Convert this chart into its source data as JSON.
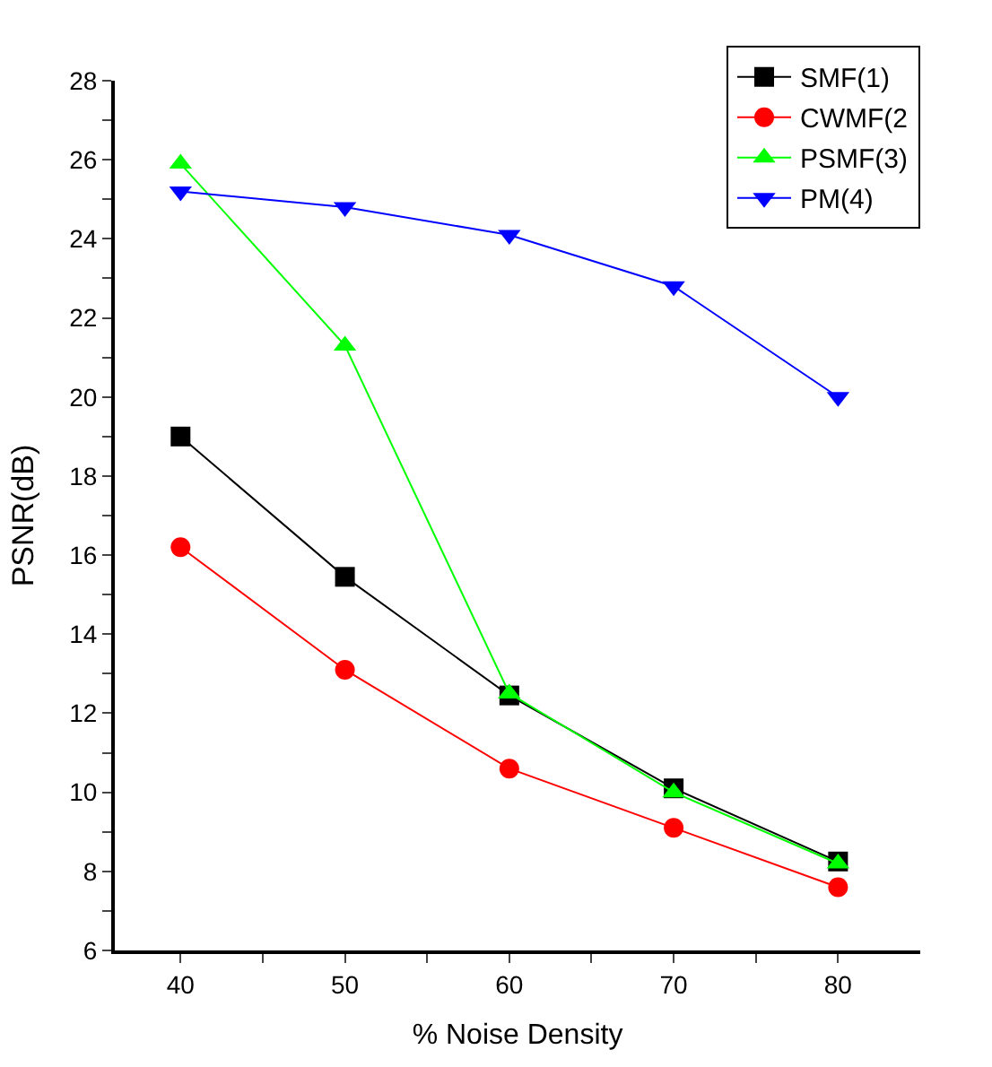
{
  "chart_data": {
    "type": "line",
    "xlabel": "% Noise Density",
    "ylabel": "PSNR(dB)",
    "x": [
      40,
      50,
      60,
      70,
      80
    ],
    "xlim": [
      36,
      85
    ],
    "xticks": [
      40,
      {
        "value": 45,
        "label": null
      },
      50,
      {
        "value": 55,
        "label": null
      },
      60,
      {
        "value": 65,
        "label": null
      },
      70,
      {
        "value": 75,
        "label": null
      },
      80
    ],
    "ylim": [
      6,
      28
    ],
    "yticks": [
      6,
      {
        "value": 7,
        "label": null
      },
      8,
      {
        "value": 9,
        "label": null
      },
      10,
      {
        "value": 11,
        "label": null
      },
      12,
      {
        "value": 13,
        "label": null
      },
      14,
      {
        "value": 15,
        "label": null
      },
      16,
      {
        "value": 17,
        "label": null
      },
      18,
      {
        "value": 19,
        "label": null
      },
      20,
      {
        "value": 21,
        "label": null
      },
      22,
      {
        "value": 23,
        "label": null
      },
      24,
      {
        "value": 25,
        "label": null
      },
      26,
      {
        "value": 27,
        "label": null
      },
      28
    ],
    "legend": "top right",
    "line_style": "solid",
    "series": [
      {
        "name": "SMF(1)",
        "color": "#000000",
        "marker": "square",
        "values": [
          19.0,
          15.45,
          12.45,
          10.1,
          8.25
        ]
      },
      {
        "name": "CWMF(2",
        "color": "#ff0000",
        "marker": "circle",
        "values": [
          16.2,
          13.1,
          10.6,
          9.1,
          7.6
        ]
      },
      {
        "name": "PSMF(3)",
        "color": "#00ff00",
        "marker": "triangle",
        "values": [
          25.9,
          21.3,
          12.5,
          10.0,
          8.2
        ]
      },
      {
        "name": "PM(4)",
        "color": "#0000ff",
        "marker": "triangle-down",
        "values": [
          25.2,
          24.8,
          24.1,
          22.8,
          20.0
        ]
      }
    ]
  }
}
